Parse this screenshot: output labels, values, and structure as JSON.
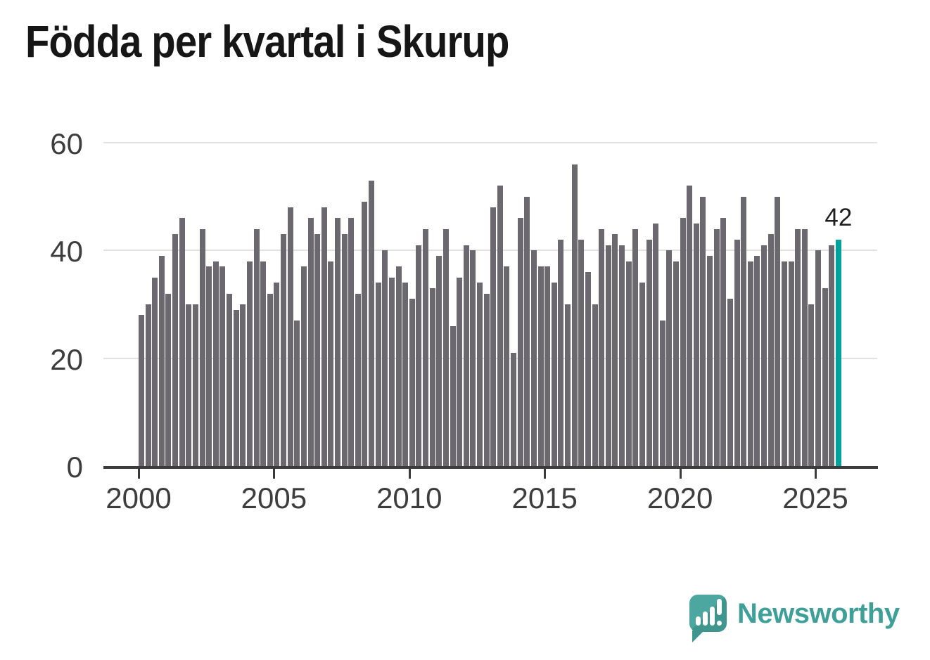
{
  "title": "Födda per kvartal i Skurup",
  "chart_data": {
    "type": "bar",
    "title": "Födda per kvartal i Skurup",
    "frequency": "quarterly",
    "x_start_year": 2000,
    "x_end": "2025 Q4",
    "series": [
      {
        "name": "Födda per kvartal",
        "values": [
          28,
          30,
          35,
          39,
          32,
          43,
          46,
          30,
          30,
          44,
          37,
          38,
          37,
          32,
          29,
          30,
          38,
          44,
          38,
          32,
          34,
          43,
          48,
          27,
          37,
          46,
          43,
          48,
          38,
          46,
          43,
          46,
          32,
          49,
          53,
          34,
          40,
          35,
          37,
          34,
          31,
          41,
          44,
          33,
          39,
          44,
          26,
          35,
          41,
          40,
          34,
          32,
          48,
          52,
          37,
          21,
          46,
          50,
          40,
          37,
          37,
          34,
          42,
          30,
          56,
          42,
          36,
          30,
          44,
          41,
          43,
          41,
          38,
          44,
          34,
          42,
          45,
          27,
          40,
          38,
          46,
          52,
          45,
          50,
          39,
          44,
          46,
          31,
          42,
          50,
          38,
          39,
          41,
          43,
          50,
          38,
          38,
          44,
          44,
          30,
          40,
          33,
          41,
          42
        ]
      }
    ],
    "ylim": [
      0,
      60
    ],
    "y_ticks": [
      0,
      20,
      40,
      60
    ],
    "y_tick_labels": [
      "0",
      "20",
      "40",
      "60"
    ],
    "x_tick_years": [
      2000,
      2005,
      2010,
      2015,
      2020,
      2025
    ],
    "x_tick_labels": [
      "2000",
      "2005",
      "2010",
      "2015",
      "2020",
      "2025"
    ],
    "grid": "horizontal",
    "legend": "none",
    "highlight_last_bar": true,
    "last_value_label": "42"
  },
  "colors": {
    "bar": "#6c6870",
    "highlight": "#00a39c",
    "gridline": "#e2e2e2",
    "axis": "#3b3b3b",
    "tick_label": "#3d3d3d",
    "title": "#161616",
    "value_label": "#1f1f1f",
    "brand": "#3f9f99"
  },
  "branding": {
    "name": "Newsworthy",
    "logo_icon": "speech-bubble-bar-chart-icon"
  }
}
